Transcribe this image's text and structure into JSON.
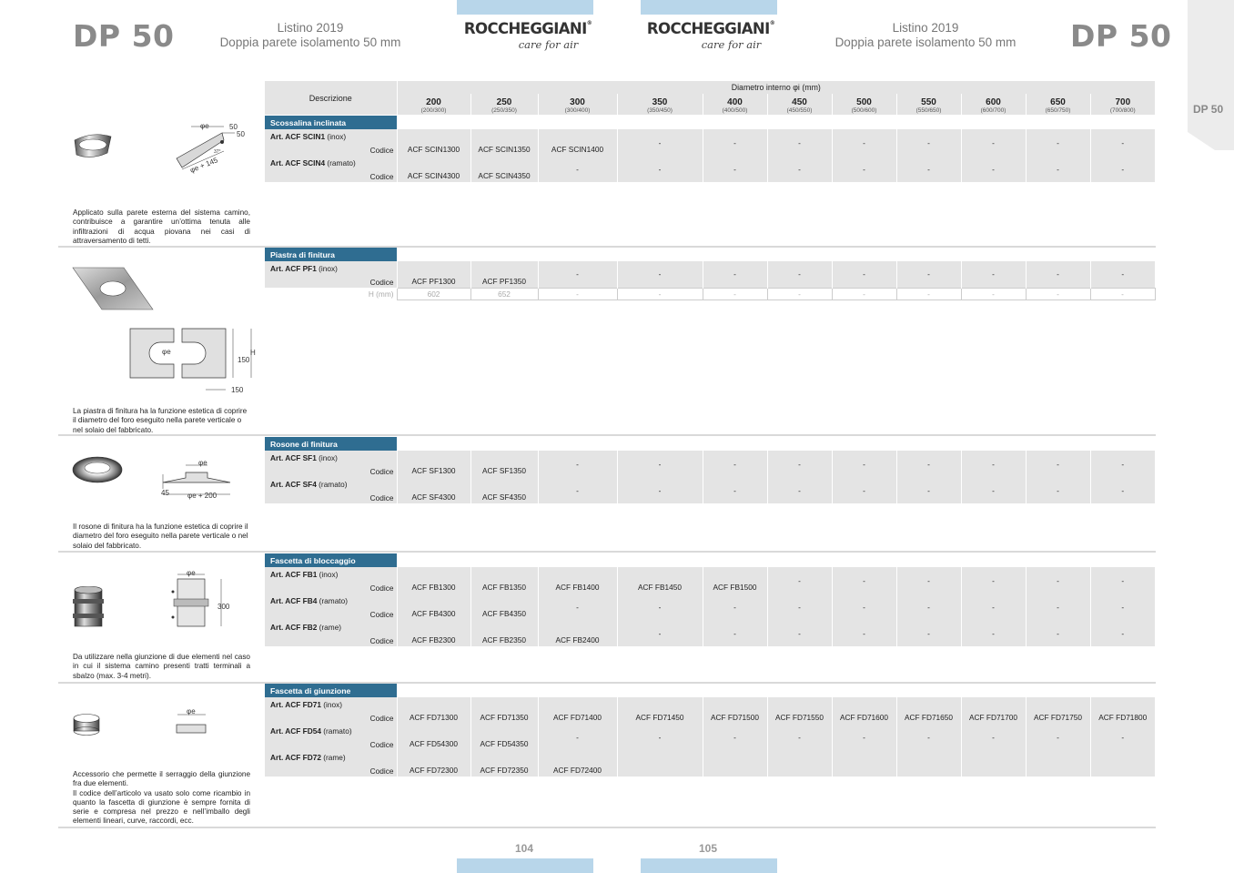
{
  "header": {
    "left_title": "DP 50",
    "right_title": "DP 50",
    "subtitle_line1": "Listino 2019",
    "subtitle_line2": "Doppia parete isolamento 50 mm",
    "logo_brand": "ROCCHEGGIANI",
    "logo_reg": "®",
    "logo_tagline": "care for air",
    "side_tab": "DP 50"
  },
  "footer": {
    "page_left": "104",
    "page_right": "105"
  },
  "table_header": {
    "descrizione": "Descrizione",
    "diametro": "Diametro interno φi (mm)",
    "columns": [
      {
        "d": "200",
        "sub": "(200/300)"
      },
      {
        "d": "250",
        "sub": "(250/350)"
      },
      {
        "d": "300",
        "sub": "(300/400)"
      },
      {
        "d": "350",
        "sub": "(350/450)"
      },
      {
        "d": "400",
        "sub": "(400/500)"
      },
      {
        "d": "450",
        "sub": "(450/550)"
      },
      {
        "d": "500",
        "sub": "(500/600)"
      },
      {
        "d": "550",
        "sub": "(550/650)"
      },
      {
        "d": "600",
        "sub": "(600/700)"
      },
      {
        "d": "650",
        "sub": "(650/750)"
      },
      {
        "d": "700",
        "sub": "(700/800)"
      }
    ]
  },
  "labels": {
    "codice": "Codice",
    "h_mm": "H (mm)",
    "dash": "-"
  },
  "sections": [
    {
      "title": "Scossalina inclinata",
      "description": "Applicato sulla parete esterna del sistema camino, contribuisce a garantire un’ottima tenuta alle infiltrazioni di acqua piovana nei casi di attraversamento di tetti.",
      "drawing": {
        "phi": "φe",
        "dim1": "50",
        "dim2": "50",
        "angle": "37°",
        "bottom": "φe + 145"
      },
      "articles": [
        {
          "name": "Art. ACF SCIN1",
          "material": "(inox)",
          "codes": [
            "ACF SCIN1300",
            "ACF SCIN1350",
            "ACF SCIN1400",
            "-",
            "-",
            "-",
            "-",
            "-",
            "-",
            "-",
            "-"
          ]
        },
        {
          "name": "Art. ACF SCIN4",
          "material": "(ramato)",
          "codes": [
            "ACF SCIN4300",
            "ACF SCIN4350",
            "-",
            "-",
            "-",
            "-",
            "-",
            "-",
            "-",
            "-",
            "-"
          ]
        }
      ]
    },
    {
      "title": "Piastra di finitura",
      "description": "La piastra di finitura ha la funzione estetica di coprire il diametro del foro eseguito nella parete verticale o nel solaio del fabbricato.",
      "drawing": {
        "phi": "φe",
        "dim150a": "150",
        "dim150b": "150",
        "h": "H"
      },
      "articles": [
        {
          "name": "Art. ACF PF1",
          "material": "(inox)",
          "codes": [
            "ACF PF1300",
            "ACF PF1350",
            "-",
            "-",
            "-",
            "-",
            "-",
            "-",
            "-",
            "-",
            "-"
          ]
        }
      ],
      "h_values": [
        "602",
        "652",
        "-",
        "-",
        "-",
        "-",
        "-",
        "-",
        "-",
        "-",
        "-"
      ]
    },
    {
      "title": "Rosone di finitura",
      "description": "Il rosone di finitura ha la funzione estetica di coprire il diametro del foro eseguito nella parete verticale o nel solaio del fabbricato.",
      "drawing": {
        "phi": "φe",
        "dim45": "45",
        "bottom": "φe + 200"
      },
      "articles": [
        {
          "name": "Art. ACF SF1",
          "material": "(inox)",
          "codes": [
            "ACF SF1300",
            "ACF SF1350",
            "-",
            "-",
            "-",
            "-",
            "-",
            "-",
            "-",
            "-",
            "-"
          ]
        },
        {
          "name": "Art. ACF SF4",
          "material": "(ramato)",
          "codes": [
            "ACF SF4300",
            "ACF SF4350",
            "-",
            "-",
            "-",
            "-",
            "-",
            "-",
            "-",
            "-",
            "-"
          ]
        }
      ]
    },
    {
      "title": "Fascetta di bloccaggio",
      "description": "Da utilizzare nella giunzione di due elementi nel caso in cui il sistema camino presenti tratti terminali a sbalzo (max. 3-4 metri).",
      "drawing": {
        "phi": "φe",
        "dim300": "300"
      },
      "articles": [
        {
          "name": "Art. ACF FB1",
          "material": "(inox)",
          "codes": [
            "ACF FB1300",
            "ACF FB1350",
            "ACF FB1400",
            "ACF FB1450",
            "ACF FB1500",
            "-",
            "-",
            "-",
            "-",
            "-",
            "-"
          ]
        },
        {
          "name": "Art. ACF FB4",
          "material": "(ramato)",
          "codes": [
            "ACF FB4300",
            "ACF FB4350",
            "-",
            "-",
            "-",
            "-",
            "-",
            "-",
            "-",
            "-",
            "-"
          ]
        },
        {
          "name": "Art. ACF FB2",
          "material": "(rame)",
          "codes": [
            "ACF FB2300",
            "ACF FB2350",
            "ACF FB2400",
            "-",
            "-",
            "-",
            "-",
            "-",
            "-",
            "-",
            "-"
          ]
        }
      ]
    },
    {
      "title": "Fascetta di giunzione",
      "description": "Accessorio che permette il serraggio della giunzione fra due elementi.\nIl codice dell’articolo va usato solo come ricambio in quanto la fascetta di giunzione è sempre fornita di serie e compresa nel prezzo e nell’imballo degli elementi lineari, curve, raccordi, ecc.",
      "drawing": {
        "phi": "φe"
      },
      "articles": [
        {
          "name": "Art. ACF FD71",
          "material": "(inox)",
          "codes": [
            "ACF FD71300",
            "ACF FD71350",
            "ACF FD71400",
            "ACF FD71450",
            "ACF FD71500",
            "ACF FD71550",
            "ACF FD71600",
            "ACF FD71650",
            "ACF FD71700",
            "ACF FD71750",
            "ACF FD71800"
          ]
        },
        {
          "name": "Art. ACF FD54",
          "material": "(ramato)",
          "codes": [
            "ACF FD54300",
            "ACF FD54350",
            "-",
            "-",
            "-",
            "-",
            "-",
            "-",
            "-",
            "-",
            "-"
          ]
        },
        {
          "name": "Art. ACF FD72",
          "material": "(rame)",
          "codes": [
            "ACF FD72300",
            "ACF FD72350",
            "ACF FD72400",
            "",
            "",
            "",
            "",
            "",
            "",
            "",
            ""
          ]
        }
      ]
    }
  ]
}
